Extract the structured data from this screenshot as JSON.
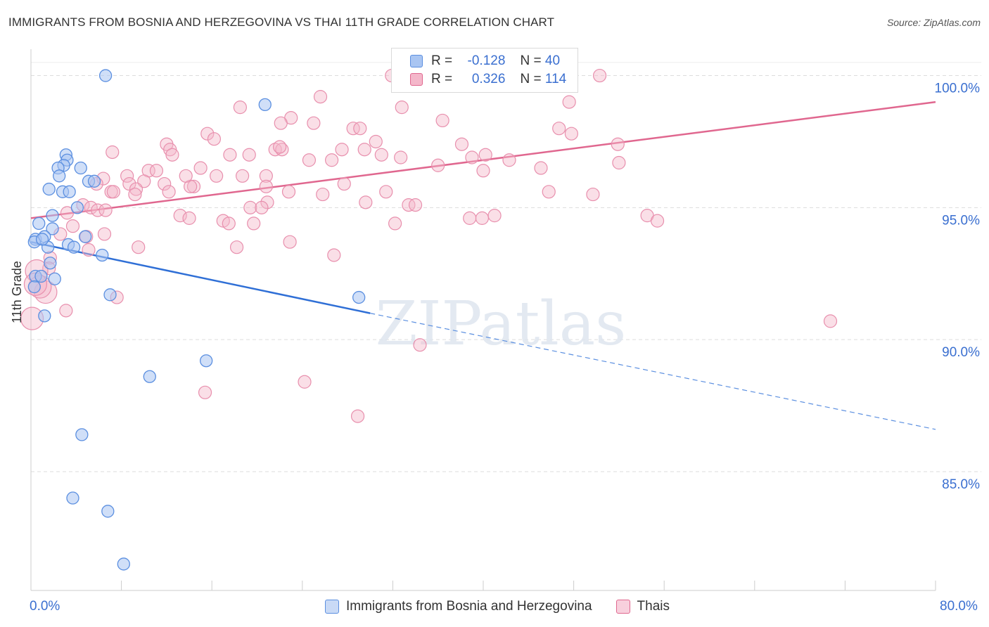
{
  "title": "IMMIGRANTS FROM BOSNIA AND HERZEGOVINA VS THAI 11TH GRADE CORRELATION CHART",
  "source": "Source: ZipAtlas.com",
  "colors": {
    "blue": "#5b8fe0",
    "blue_fill": "#a9c5f2",
    "pink": "#e0678f",
    "pink_fill": "#f4b7ca",
    "axis_text": "#3a6fd0"
  },
  "legend": {
    "rows": [
      {
        "r_label": "R =",
        "r_value": "-0.128",
        "n_label": "N =",
        "n_value": "40"
      },
      {
        "r_label": "R =",
        "r_value": "0.326",
        "n_label": "N =",
        "n_value": "114"
      }
    ]
  },
  "bottom_legend": [
    "Immigrants from Bosnia and Herzegovina",
    "Thais"
  ],
  "chart_data": {
    "type": "scatter",
    "ylabel": "11th Grade",
    "xlim": [
      0,
      80
    ],
    "ylim": [
      80.5,
      101
    ],
    "x_tick_labels": [
      "0.0%",
      "80.0%"
    ],
    "y_ticks": [
      85,
      90,
      95,
      100
    ],
    "y_tick_labels": [
      "85.0%",
      "90.0%",
      "95.0%",
      "100.0%"
    ],
    "grid": true,
    "watermark": "ZIPatlas",
    "series": [
      {
        "name": "Immigrants from Bosnia and Herzegovina",
        "color": "#5b8fe0",
        "trend": {
          "x0": 0,
          "y0": 93.7,
          "x1": 30,
          "y1": 91.0,
          "x_dash_end": 80,
          "y_dash_end": 86.6
        },
        "points": [
          [
            6.6,
            100
          ],
          [
            20.7,
            98.9
          ],
          [
            3.1,
            97
          ],
          [
            3.2,
            96.8
          ],
          [
            2.9,
            96.6
          ],
          [
            2.4,
            96.5
          ],
          [
            4.4,
            96.5
          ],
          [
            2.5,
            96.2
          ],
          [
            5.1,
            96
          ],
          [
            5.6,
            96
          ],
          [
            1.6,
            95.7
          ],
          [
            2.8,
            95.6
          ],
          [
            3.4,
            95.6
          ],
          [
            1.9,
            94.7
          ],
          [
            4.1,
            95
          ],
          [
            0.7,
            94.4
          ],
          [
            1.9,
            94.2
          ],
          [
            0.4,
            93.8
          ],
          [
            1.2,
            93.9
          ],
          [
            0.3,
            93.7
          ],
          [
            4.8,
            93.9
          ],
          [
            1.5,
            93.5
          ],
          [
            3.3,
            93.6
          ],
          [
            3.8,
            93.5
          ],
          [
            6.3,
            93.2
          ],
          [
            1.7,
            92.9
          ],
          [
            0.4,
            92.4
          ],
          [
            0.9,
            92.4
          ],
          [
            2.1,
            92.3
          ],
          [
            7.0,
            91.7
          ],
          [
            29.0,
            91.6
          ],
          [
            1.2,
            90.9
          ],
          [
            15.5,
            89.2
          ],
          [
            10.5,
            88.6
          ],
          [
            4.5,
            86.4
          ],
          [
            3.7,
            84.0
          ],
          [
            6.8,
            83.5
          ],
          [
            8.2,
            81.5
          ],
          [
            0.3,
            92.0
          ],
          [
            1.0,
            93.8
          ]
        ]
      },
      {
        "name": "Thais",
        "color": "#e0678f",
        "trend": {
          "x0": 0,
          "y0": 94.6,
          "x1": 80,
          "y1": 99.0
        },
        "points": [
          [
            31.9,
            100
          ],
          [
            41.2,
            100
          ],
          [
            50.3,
            100
          ],
          [
            25.6,
            99.2
          ],
          [
            18.5,
            98.8
          ],
          [
            32.8,
            98.8
          ],
          [
            47.6,
            99.0
          ],
          [
            23.0,
            98.4
          ],
          [
            22.1,
            98.2
          ],
          [
            25.0,
            98.2
          ],
          [
            36.4,
            98.3
          ],
          [
            28.5,
            98.0
          ],
          [
            46.7,
            98.0
          ],
          [
            29.1,
            98.0
          ],
          [
            15.6,
            97.8
          ],
          [
            16.2,
            97.6
          ],
          [
            47.8,
            97.8
          ],
          [
            30.5,
            97.5
          ],
          [
            38.1,
            97.4
          ],
          [
            51.9,
            97.4
          ],
          [
            12.0,
            97.4
          ],
          [
            12.3,
            97.2
          ],
          [
            21.6,
            97.2
          ],
          [
            22.2,
            97.2
          ],
          [
            22.0,
            97.3
          ],
          [
            27.5,
            97.2
          ],
          [
            29.5,
            97.2
          ],
          [
            31.0,
            97.0
          ],
          [
            7.2,
            97.1
          ],
          [
            17.6,
            97.0
          ],
          [
            19.3,
            97.0
          ],
          [
            12.5,
            97.0
          ],
          [
            32.7,
            96.9
          ],
          [
            26.6,
            96.8
          ],
          [
            24.6,
            96.8
          ],
          [
            39.0,
            96.9
          ],
          [
            40.2,
            97.0
          ],
          [
            36.0,
            96.6
          ],
          [
            10.4,
            96.4
          ],
          [
            11.1,
            96.4
          ],
          [
            15.0,
            96.5
          ],
          [
            40.0,
            96.4
          ],
          [
            6.4,
            96.1
          ],
          [
            8.5,
            96.2
          ],
          [
            16.4,
            96.2
          ],
          [
            18.7,
            96.2
          ],
          [
            20.8,
            96.2
          ],
          [
            5.8,
            95.9
          ],
          [
            8.7,
            95.9
          ],
          [
            10.0,
            96.0
          ],
          [
            11.8,
            95.9
          ],
          [
            27.7,
            95.9
          ],
          [
            20.8,
            95.8
          ],
          [
            14.4,
            95.8
          ],
          [
            14.1,
            95.8
          ],
          [
            9.3,
            95.7
          ],
          [
            12.2,
            95.6
          ],
          [
            9.2,
            95.5
          ],
          [
            7.1,
            95.6
          ],
          [
            22.8,
            95.6
          ],
          [
            25.8,
            95.5
          ],
          [
            31.4,
            95.6
          ],
          [
            45.8,
            95.6
          ],
          [
            29.6,
            95.2
          ],
          [
            33.4,
            95.1
          ],
          [
            20.9,
            95.2
          ],
          [
            19.4,
            95.0
          ],
          [
            20.4,
            95.0
          ],
          [
            34.0,
            95.1
          ],
          [
            4.6,
            95.1
          ],
          [
            5.3,
            95.0
          ],
          [
            3.2,
            94.8
          ],
          [
            5.9,
            94.9
          ],
          [
            6.6,
            94.9
          ],
          [
            13.2,
            94.7
          ],
          [
            14.0,
            94.6
          ],
          [
            17.0,
            94.5
          ],
          [
            17.5,
            94.4
          ],
          [
            19.7,
            94.4
          ],
          [
            32.2,
            94.4
          ],
          [
            38.8,
            94.6
          ],
          [
            39.9,
            94.6
          ],
          [
            41.0,
            94.7
          ],
          [
            54.5,
            94.7
          ],
          [
            55.4,
            94.5
          ],
          [
            3.7,
            94.3
          ],
          [
            2.6,
            94.0
          ],
          [
            4.9,
            93.9
          ],
          [
            9.5,
            93.5
          ],
          [
            18.2,
            93.5
          ],
          [
            22.9,
            93.7
          ],
          [
            26.8,
            93.2
          ],
          [
            1.7,
            93.1
          ],
          [
            1.6,
            92.7
          ],
          [
            0.5,
            92.6
          ],
          [
            1.3,
            91.8
          ],
          [
            7.6,
            91.6
          ],
          [
            0.8,
            92.0
          ],
          [
            0.4,
            92.1
          ],
          [
            0.1,
            90.8
          ],
          [
            3.1,
            91.1
          ],
          [
            70.7,
            90.7
          ],
          [
            34.4,
            89.8
          ],
          [
            24.2,
            88.4
          ],
          [
            15.4,
            88.0
          ],
          [
            28.9,
            87.1
          ],
          [
            42.3,
            96.8
          ],
          [
            52.0,
            96.7
          ],
          [
            49.7,
            95.5
          ],
          [
            13.7,
            96.2
          ],
          [
            5.1,
            93.4
          ],
          [
            7.3,
            95.6
          ],
          [
            45.1,
            96.5
          ],
          [
            6.5,
            94.0
          ]
        ]
      }
    ]
  }
}
